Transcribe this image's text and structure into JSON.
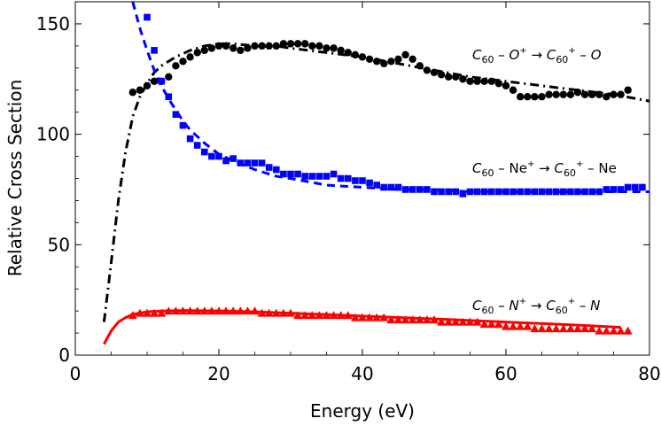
{
  "chart_data": {
    "type": "scatter",
    "title": "",
    "xlabel": "Energy (eV)",
    "ylabel": "Relative Cross Section",
    "xlim": [
      0,
      80
    ],
    "ylim": [
      0,
      160
    ],
    "xticks": [
      0,
      20,
      40,
      60,
      80
    ],
    "yticks": [
      0,
      50,
      100,
      150
    ],
    "xtick_labels": [
      "0",
      "20",
      "40",
      "60",
      "80"
    ],
    "ytick_labels": [
      "0",
      "50",
      "100",
      "150"
    ],
    "series": [
      {
        "name": "C60 - O+ → C60+ - O",
        "label_parts": {
          "a": "C",
          "a_sub": "60",
          "b": " – O",
          "b_sup": "+",
          "arrow": " → ",
          "c": "C",
          "c_sub": "60",
          "c_sup": "+",
          "d": " – O"
        },
        "color": "#000000",
        "marker": "circle",
        "x": [
          8,
          9,
          10,
          11,
          12,
          13,
          14,
          15,
          16,
          17,
          18,
          19,
          20,
          21,
          22,
          23,
          24,
          25,
          26,
          27,
          28,
          29,
          30,
          31,
          32,
          33,
          34,
          35,
          36,
          37,
          38,
          39,
          40,
          41,
          42,
          43,
          44,
          45,
          46,
          47,
          48,
          49,
          50,
          51,
          52,
          53,
          54,
          55,
          56,
          57,
          58,
          59,
          60,
          61,
          62,
          63,
          64,
          65,
          66,
          67,
          68,
          69,
          70,
          71,
          72,
          73,
          74,
          75,
          76,
          77
        ],
        "y": [
          119,
          120,
          122,
          124,
          124,
          126,
          131,
          133,
          135,
          137,
          138,
          139,
          140,
          140,
          139,
          138,
          139,
          140,
          140,
          140,
          140,
          141,
          141,
          141,
          141,
          140,
          140,
          139,
          139,
          138,
          137,
          136,
          135,
          134,
          133,
          132,
          133,
          134,
          136,
          134,
          131,
          129,
          128,
          127,
          126,
          126,
          125,
          124,
          124,
          124,
          124,
          123,
          122,
          120,
          117,
          117,
          117,
          117,
          118,
          118,
          118,
          118,
          119,
          118,
          118,
          118,
          117,
          118,
          118,
          120
        ],
        "fit": {
          "style": "dash-dot",
          "x": [
            4,
            5,
            6,
            7,
            8,
            9,
            10,
            11,
            12,
            14,
            16,
            18,
            20,
            22,
            25,
            28,
            30,
            35,
            40,
            45,
            50,
            55,
            60,
            65,
            70,
            75,
            80
          ],
          "y": [
            15,
            42,
            70,
            92,
            108,
            117,
            123,
            128,
            131,
            135,
            138,
            140,
            141,
            141,
            140,
            140,
            139,
            137,
            135,
            132,
            129,
            126,
            124,
            122,
            120,
            118,
            115
          ]
        }
      },
      {
        "name": "C60 - Ne+ → C60+ - Ne",
        "label_parts": {
          "a": "C",
          "a_sub": "60",
          "b": " – Ne",
          "b_sup": "+",
          "arrow": " → ",
          "c": "C",
          "c_sub": "60",
          "c_sup": "+",
          "d": " – Ne"
        },
        "color": "#0000ff",
        "marker": "square",
        "x": [
          10,
          11,
          12,
          13,
          14,
          15,
          16,
          17,
          18,
          19,
          20,
          21,
          22,
          23,
          24,
          25,
          26,
          27,
          28,
          29,
          30,
          31,
          32,
          33,
          34,
          35,
          36,
          37,
          38,
          39,
          40,
          41,
          42,
          43,
          44,
          45,
          46,
          47,
          48,
          49,
          50,
          51,
          52,
          53,
          54,
          55,
          56,
          57,
          58,
          59,
          60,
          61,
          62,
          63,
          64,
          65,
          66,
          67,
          68,
          69,
          70,
          71,
          72,
          73,
          74,
          75,
          76,
          77,
          78,
          79
        ],
        "y": [
          153,
          138,
          124,
          117,
          109,
          104,
          98,
          95,
          92,
          90,
          90,
          88,
          89,
          87,
          87,
          87,
          87,
          85,
          84,
          82,
          82,
          82,
          81,
          81,
          81,
          81,
          82,
          80,
          80,
          79,
          79,
          78,
          77,
          76,
          76,
          76,
          75,
          75,
          75,
          75,
          74,
          74,
          74,
          74,
          73,
          74,
          74,
          74,
          74,
          74,
          74,
          74,
          74,
          74,
          74,
          74,
          74,
          74,
          74,
          74,
          74,
          74,
          74,
          74,
          75,
          75,
          75,
          76,
          76,
          76
        ],
        "fit": {
          "style": "dashed",
          "x": [
            8,
            9,
            10,
            11,
            12,
            13,
            14,
            15,
            16,
            18,
            20,
            22,
            25,
            28,
            30,
            35,
            40,
            45,
            50,
            55,
            60,
            65,
            70,
            75,
            80
          ],
          "y": [
            160,
            148,
            138,
            129,
            122,
            116,
            111,
            106,
            102,
            96,
            91,
            88,
            84,
            81,
            80,
            77,
            76,
            75,
            75,
            74,
            74,
            74,
            74,
            74,
            74
          ]
        }
      },
      {
        "name": "C60 - N+ → C60+ - N",
        "label_parts": {
          "a": "C",
          "a_sub": "60",
          "b": " – N",
          "b_sup": "+",
          "arrow": " → ",
          "c": "C",
          "c_sub": "60",
          "c_sup": "+",
          "d": " – N"
        },
        "color": "#ff0000",
        "marker": "triangle",
        "x": [
          8,
          9,
          10,
          11,
          12,
          13,
          14,
          15,
          16,
          17,
          18,
          19,
          20,
          21,
          22,
          23,
          24,
          25,
          26,
          27,
          28,
          29,
          30,
          31,
          32,
          33,
          34,
          35,
          36,
          37,
          38,
          39,
          40,
          41,
          42,
          43,
          44,
          45,
          46,
          47,
          48,
          49,
          50,
          51,
          52,
          53,
          54,
          55,
          56,
          57,
          58,
          59,
          60,
          61,
          62,
          63,
          64,
          65,
          66,
          67,
          68,
          69,
          70,
          71,
          72,
          73,
          74,
          75,
          76,
          77
        ],
        "y": [
          18,
          19,
          19,
          19,
          19,
          20,
          20,
          20,
          20,
          20,
          20,
          20,
          20,
          20,
          20,
          20,
          20,
          20,
          19,
          19,
          19,
          19,
          19,
          18,
          18,
          18,
          18,
          18,
          18,
          18,
          18,
          17,
          17,
          17,
          17,
          17,
          16,
          16,
          16,
          16,
          16,
          16,
          16,
          15,
          15,
          15,
          15,
          15,
          15,
          14,
          14,
          14,
          13,
          13,
          13,
          13,
          12,
          12,
          12,
          12,
          12,
          12,
          12,
          12,
          12,
          11,
          11,
          11,
          11,
          11
        ],
        "fit": {
          "style": "solid",
          "x": [
            4,
            5,
            6,
            7,
            8,
            10,
            12,
            15,
            20,
            25,
            30,
            40,
            50,
            60,
            70,
            76
          ],
          "y": [
            5,
            11,
            15,
            17,
            18.5,
            19.6,
            20,
            20.2,
            20,
            19.6,
            19,
            17.7,
            16.4,
            15,
            13.6,
            12.6
          ]
        }
      }
    ]
  }
}
